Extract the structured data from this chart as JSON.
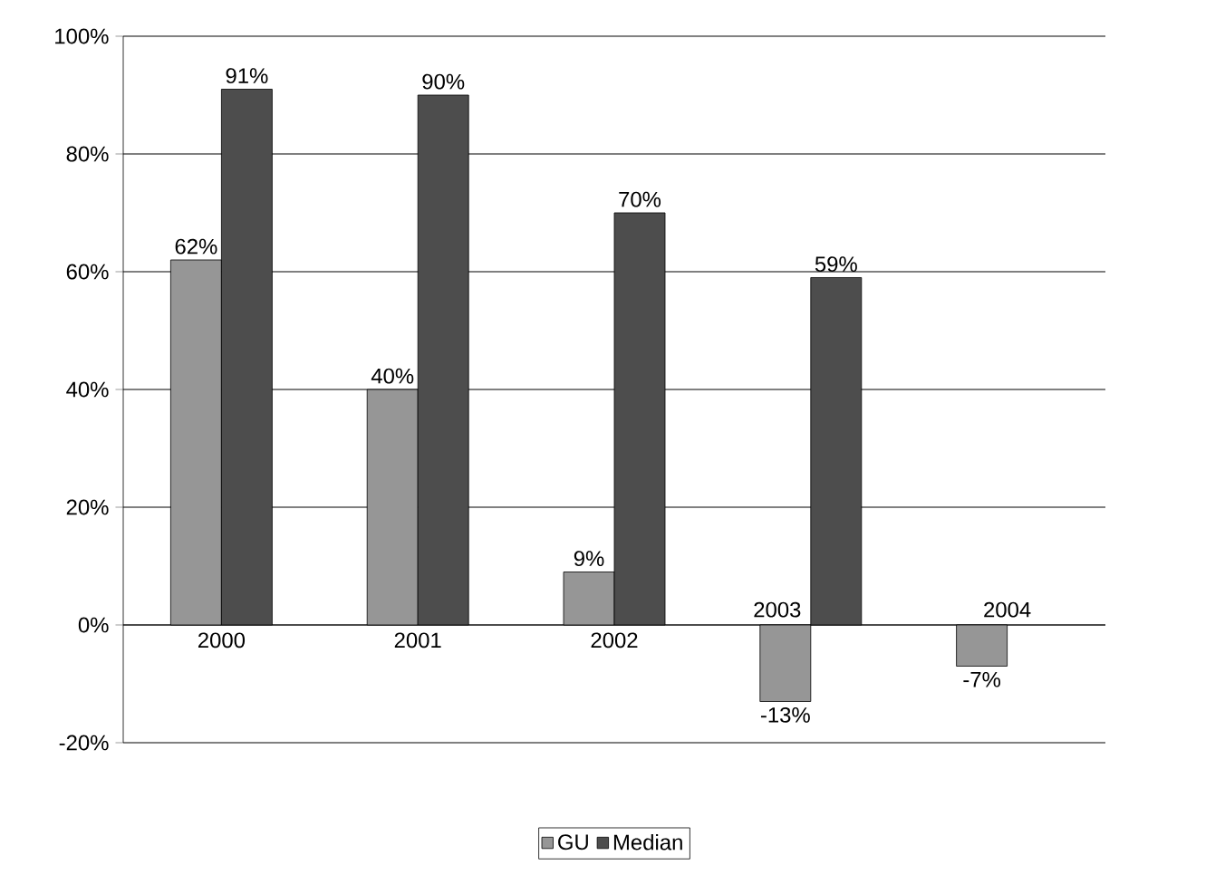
{
  "chart_data": {
    "type": "bar",
    "categories": [
      "2000",
      "2001",
      "2002",
      "2003",
      "2004"
    ],
    "series": [
      {
        "name": "GU",
        "color": "#969696",
        "values": [
          62,
          40,
          9,
          -13,
          -7
        ],
        "value_labels": [
          "62%",
          "40%",
          "9%",
          "-13%",
          "-7%"
        ]
      },
      {
        "name": "Median",
        "color": "#4d4d4d",
        "values": [
          91,
          90,
          70,
          59,
          null
        ],
        "value_labels": [
          "91%",
          "90%",
          "70%",
          "59%",
          null
        ]
      }
    ],
    "ylim": [
      -20,
      100
    ],
    "yticks": [
      {
        "value": -20,
        "label": "-20%"
      },
      {
        "value": 0,
        "label": "0%"
      },
      {
        "value": 20,
        "label": "20%"
      },
      {
        "value": 40,
        "label": "40%"
      },
      {
        "value": 60,
        "label": "60%"
      },
      {
        "value": 80,
        "label": "80%"
      },
      {
        "value": 100,
        "label": "100%"
      }
    ],
    "grid": "y",
    "legend": "bottom"
  }
}
